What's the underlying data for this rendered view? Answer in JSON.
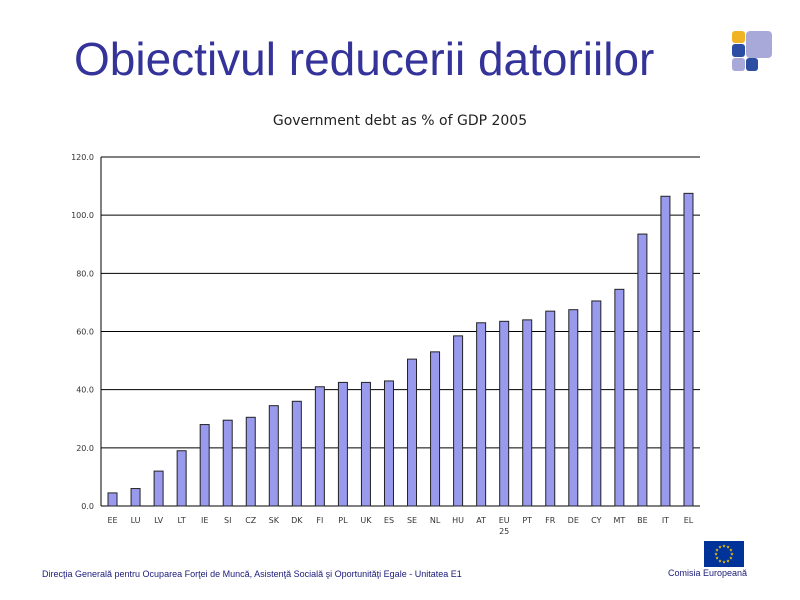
{
  "slide": {
    "title": "Obiectivul reducerii datoriilor",
    "footer_left": "Direcţia Generală pentru Ocuparea Forţei de Muncă, Asistenţă Socială şi Oportunităţi Egale  - Unitatea E1",
    "footer_right": "Comisia  Europeană"
  },
  "colors": {
    "title": "#33339a",
    "bar_fill": "#9999ee",
    "bar_stroke": "#222222",
    "logo_yellow": "#f0b323",
    "logo_blue": "#2b4ea2",
    "logo_lilac": "#a9a9d9",
    "eu_blue": "#003399",
    "eu_star": "#ffcc00"
  },
  "chart_data": {
    "type": "bar",
    "title": "Government debt as % of GDP 2005",
    "categories": [
      "EE",
      "LU",
      "LV",
      "LT",
      "IE",
      "SI",
      "CZ",
      "SK",
      "DK",
      "FI",
      "PL",
      "UK",
      "ES",
      "SE",
      "NL",
      "HU",
      "AT",
      "EU 25",
      "PT",
      "FR",
      "DE",
      "CY",
      "MT",
      "BE",
      "IT",
      "EL"
    ],
    "values": [
      4.5,
      6,
      12,
      19,
      28,
      29.5,
      30.5,
      34.5,
      36,
      41,
      42.5,
      42.5,
      43,
      50.5,
      53,
      58.5,
      63,
      63.5,
      64,
      67,
      67.5,
      70.5,
      74.5,
      93.5,
      106.5,
      107.5
    ],
    "yticks": [
      "0.0",
      "20.0",
      "40.0",
      "60.0",
      "80.0",
      "100.0",
      "120.0"
    ],
    "ylim": [
      0,
      120
    ],
    "xlabel": "",
    "ylabel": "",
    "grid": true
  }
}
